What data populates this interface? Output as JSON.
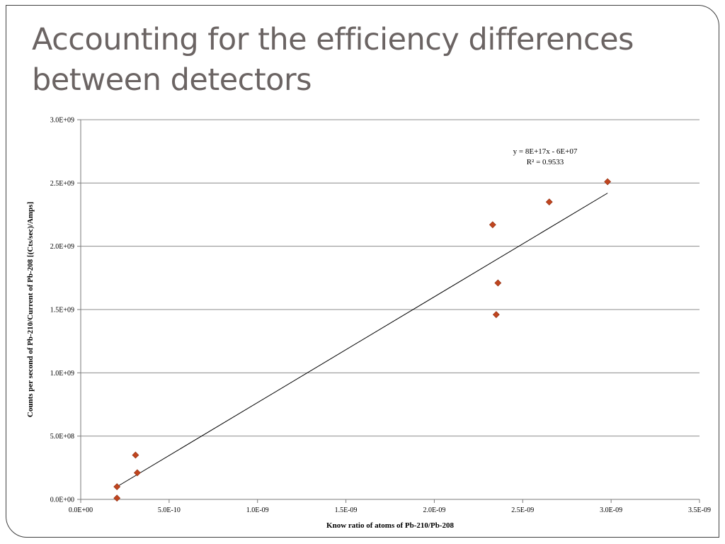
{
  "slide": {
    "title": "Accounting for the efficiency differences between detectors"
  },
  "colors": {
    "marker": "#c0451f",
    "marker_stroke": "#8e2f12",
    "gridline": "#8c8c8c",
    "trendline": "#000000",
    "title_text": "#6b6463"
  },
  "chart_data": {
    "type": "scatter",
    "xlabel": "Know ratio of atoms of Pb-210/Pb-208",
    "ylabel": "Counts per second of Pb-210/Current of Pb-208 [(Cts/sec)/Amps]",
    "xlim": [
      0,
      3.5e-09
    ],
    "ylim": [
      0,
      3000000000.0
    ],
    "x_ticks": [
      0,
      5e-10,
      1e-09,
      1.5e-09,
      2e-09,
      2.5e-09,
      3e-09,
      3.5e-09
    ],
    "x_tick_labels": [
      "0.0E+00",
      "5.0E-10",
      "1.0E-09",
      "1.5E-09",
      "2.0E-09",
      "2.5E-09",
      "3.0E-09",
      "3.5E-09"
    ],
    "y_ticks": [
      0,
      500000000.0,
      1000000000.0,
      1500000000.0,
      2000000000.0,
      2500000000.0,
      3000000000.0
    ],
    "y_tick_labels": [
      "0.0E+00",
      "5.0E+08",
      "1.0E+09",
      "1.5E+09",
      "2.0E+09",
      "2.5E+09",
      "3.0E+09"
    ],
    "grid": "horizontal",
    "marker": "diamond",
    "points": [
      {
        "x": 2.05e-10,
        "y": 100000000.0
      },
      {
        "x": 2.05e-10,
        "y": 10000000.0
      },
      {
        "x": 3.1e-10,
        "y": 350000000.0
      },
      {
        "x": 3.2e-10,
        "y": 210000000.0
      },
      {
        "x": 2.33e-09,
        "y": 2170000000.0
      },
      {
        "x": 2.35e-09,
        "y": 1460000000.0
      },
      {
        "x": 2.36e-09,
        "y": 1710000000.0
      },
      {
        "x": 2.65e-09,
        "y": 2350000000.0
      },
      {
        "x": 2.98e-09,
        "y": 2510000000.0
      }
    ],
    "trendline": {
      "type": "linear",
      "x_range": [
        2.05e-10,
        2.98e-09
      ],
      "y_range": [
        100000000.0,
        2420000000.0
      ],
      "equation": "y = 8E+17x - 6E+07",
      "r_squared": "R² = 0.9533"
    }
  }
}
